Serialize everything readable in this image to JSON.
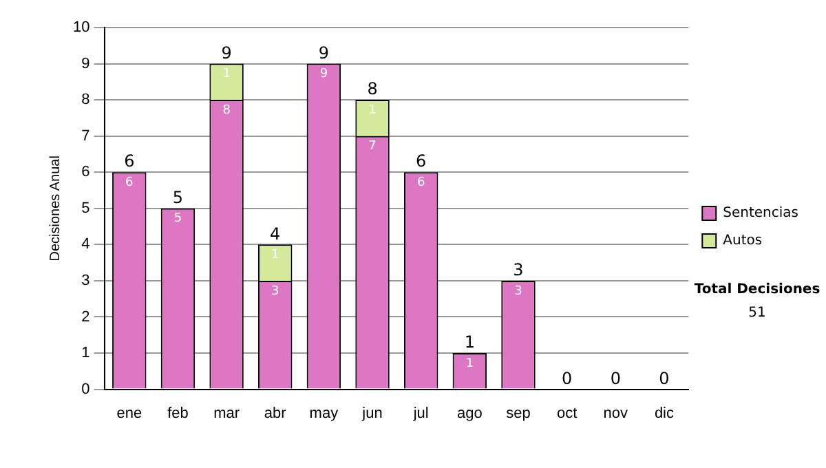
{
  "chart_data": {
    "type": "bar",
    "stacked": true,
    "ylabel": "Decisiones Anual",
    "categories": [
      "ene",
      "feb",
      "mar",
      "abr",
      "may",
      "jun",
      "jul",
      "ago",
      "sep",
      "oct",
      "nov",
      "dic"
    ],
    "series": [
      {
        "name": "Sentencias",
        "color": "#dd77c4",
        "values": [
          6,
          5,
          8,
          3,
          9,
          7,
          6,
          1,
          3,
          0,
          0,
          0
        ],
        "value_labels": [
          "6",
          "5",
          "8",
          "3",
          "9",
          "7",
          "6",
          "1",
          "3",
          null,
          null,
          null
        ]
      },
      {
        "name": "Autos",
        "color": "#d4e99c",
        "values": [
          0,
          0,
          1,
          1,
          0,
          1,
          0,
          0,
          0,
          0,
          0,
          0
        ],
        "value_labels": [
          null,
          null,
          "1",
          "1",
          null,
          "1",
          null,
          null,
          null,
          null,
          null,
          null
        ]
      }
    ],
    "totals": [
      "6",
      "5",
      "9",
      "4",
      "9",
      "8",
      "6",
      "1",
      "3",
      "0",
      "0",
      "0"
    ],
    "ylim": [
      0,
      10
    ],
    "yticks": [
      0,
      1,
      2,
      3,
      4,
      5,
      6,
      7,
      8,
      9,
      10
    ],
    "grid": "y",
    "legend": "right",
    "annotations": [
      "Total Decisiones",
      "51"
    ]
  }
}
